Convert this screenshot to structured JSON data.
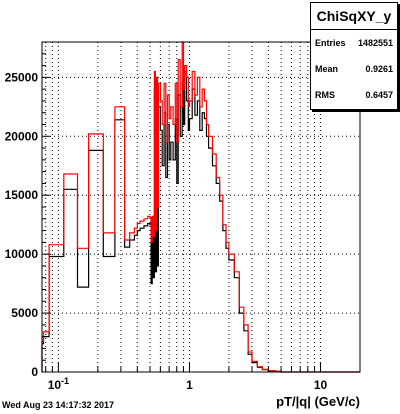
{
  "stats": {
    "title": "ChiSqXY_y",
    "rows": [
      {
        "label": "Entries",
        "value": "1482551"
      },
      {
        "label": "Mean",
        "value": "0.9261"
      },
      {
        "label": "RMS",
        "value": "0.6457"
      }
    ]
  },
  "footer": "Wed Aug 23 14:17:32 2017",
  "chart_data": {
    "type": "line",
    "title": "",
    "xlabel": "pT/|q| (GeV/c)",
    "ylabel": "",
    "xscale": "log",
    "xlim": [
      0.075,
      20
    ],
    "ylim": [
      0,
      28000
    ],
    "grid": true,
    "x_ticks": [
      {
        "value": 0.1,
        "label": "10^{-1}"
      },
      {
        "value": 1,
        "label": "1"
      },
      {
        "value": 10,
        "label": "10"
      }
    ],
    "y_ticks": [
      0,
      5000,
      10000,
      15000,
      20000,
      25000
    ],
    "legend": "stats box top-right",
    "series": [
      {
        "color": "#000000",
        "x": [
          0.075,
          0.077,
          0.085,
          0.09,
          0.1,
          0.11,
          0.13,
          0.14,
          0.16,
          0.17,
          0.2,
          0.22,
          0.25,
          0.27,
          0.3,
          0.32,
          0.35,
          0.38,
          0.4,
          0.42,
          0.45,
          0.48,
          0.5,
          0.51,
          0.52,
          0.53,
          0.54,
          0.55,
          0.56,
          0.57,
          0.58,
          0.6,
          0.62,
          0.64,
          0.66,
          0.68,
          0.7,
          0.72,
          0.75,
          0.78,
          0.8,
          0.82,
          0.85,
          0.88,
          0.9,
          0.92,
          0.95,
          0.98,
          1.0,
          1.05,
          1.1,
          1.15,
          1.2,
          1.25,
          1.3,
          1.35,
          1.4,
          1.5,
          1.6,
          1.7,
          1.8,
          1.9,
          2.0,
          2.2,
          2.4,
          2.6,
          2.8,
          3.0,
          3.3,
          3.6,
          4.0,
          4.5,
          5.0,
          6.0,
          7.0,
          8.0,
          10.0,
          13.0,
          16.0,
          20.0
        ],
        "y": [
          2400,
          3000,
          9800,
          9800,
          9800,
          15500,
          15500,
          7200,
          7200,
          18800,
          18800,
          9800,
          9800,
          21400,
          21400,
          10600,
          11200,
          11600,
          12000,
          12200,
          12400,
          12600,
          12500,
          7500,
          12700,
          8000,
          24000,
          8500,
          23500,
          9000,
          22500,
          20500,
          17500,
          22000,
          16500,
          21000,
          18000,
          19500,
          18000,
          21500,
          16000,
          23500,
          20000,
          24500,
          21000,
          25500,
          23000,
          20500,
          21500,
          24000,
          21800,
          23000,
          20500,
          22000,
          21500,
          20000,
          19000,
          17500,
          16000,
          14500,
          12000,
          10500,
          9500,
          8000,
          5000,
          3500,
          1500,
          800,
          400,
          200,
          100,
          50,
          0,
          0,
          0,
          0,
          0,
          0,
          0,
          0
        ]
      },
      {
        "color": "#ff0000",
        "x": [
          0.075,
          0.077,
          0.085,
          0.09,
          0.1,
          0.11,
          0.13,
          0.14,
          0.16,
          0.17,
          0.2,
          0.22,
          0.25,
          0.27,
          0.3,
          0.32,
          0.35,
          0.38,
          0.4,
          0.42,
          0.45,
          0.48,
          0.5,
          0.51,
          0.52,
          0.53,
          0.54,
          0.55,
          0.56,
          0.57,
          0.58,
          0.6,
          0.62,
          0.64,
          0.66,
          0.68,
          0.7,
          0.72,
          0.75,
          0.78,
          0.8,
          0.82,
          0.85,
          0.88,
          0.9,
          0.92,
          0.95,
          0.98,
          1.0,
          1.05,
          1.1,
          1.15,
          1.2,
          1.25,
          1.3,
          1.35,
          1.4,
          1.5,
          1.6,
          1.7,
          1.8,
          1.9,
          2.0,
          2.2,
          2.4,
          2.6,
          2.8,
          3.0,
          3.3,
          3.6,
          4.0,
          4.5,
          5.0,
          6.0,
          7.0,
          8.0,
          10.0,
          13.0,
          16.0,
          20.0
        ],
        "y": [
          2600,
          3400,
          10800,
          10800,
          10800,
          16800,
          16800,
          10500,
          10500,
          20200,
          20200,
          11800,
          11800,
          22500,
          22500,
          11200,
          11800,
          12200,
          12600,
          12800,
          13000,
          13200,
          13100,
          11000,
          13200,
          11500,
          25500,
          12000,
          25000,
          14000,
          24500,
          23000,
          21000,
          24500,
          19500,
          23500,
          21500,
          22500,
          21000,
          24500,
          19500,
          26500,
          22500,
          28000,
          24000,
          26000,
          25000,
          22500,
          23000,
          25500,
          23500,
          25000,
          22500,
          24000,
          23000,
          21000,
          20000,
          18500,
          16500,
          15000,
          12500,
          11000,
          10000,
          8500,
          5500,
          4000,
          1700,
          900,
          450,
          220,
          110,
          60,
          0,
          0,
          0,
          0,
          0,
          0,
          0,
          0
        ]
      }
    ]
  }
}
